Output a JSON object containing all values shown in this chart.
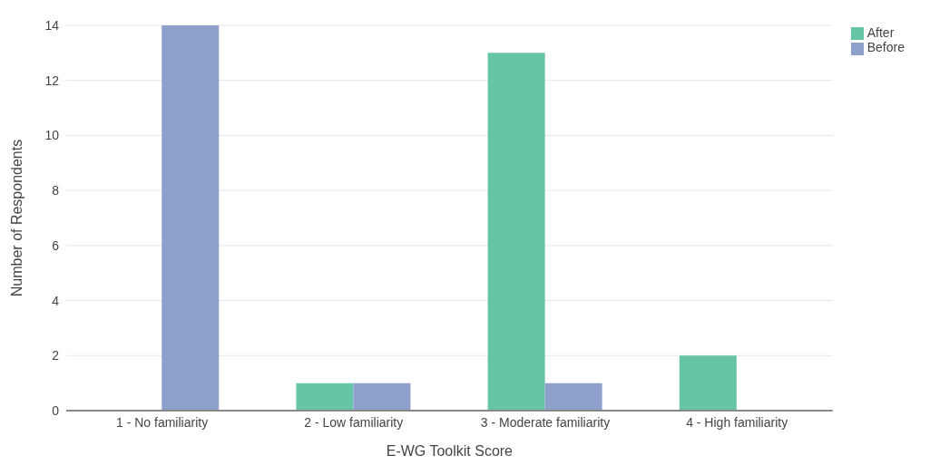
{
  "chart_data": {
    "type": "bar",
    "xlabel": "E-WG Toolkit Score",
    "ylabel": "Number of Respondents",
    "categories": [
      "1 - No familiarity",
      "2 - Low familiarity",
      "3 - Moderate familiarity",
      "4 - High familiarity"
    ],
    "series": [
      {
        "name": "After",
        "color": "#66c5a5",
        "values": [
          0,
          1,
          13,
          2
        ]
      },
      {
        "name": "Before",
        "color": "#8da0cb",
        "values": [
          14,
          1,
          1,
          0
        ]
      }
    ],
    "ylim": [
      0,
      14
    ],
    "yticks": [
      0,
      2,
      4,
      6,
      8,
      10,
      12,
      14
    ],
    "grid": "y",
    "legend": "top right"
  }
}
